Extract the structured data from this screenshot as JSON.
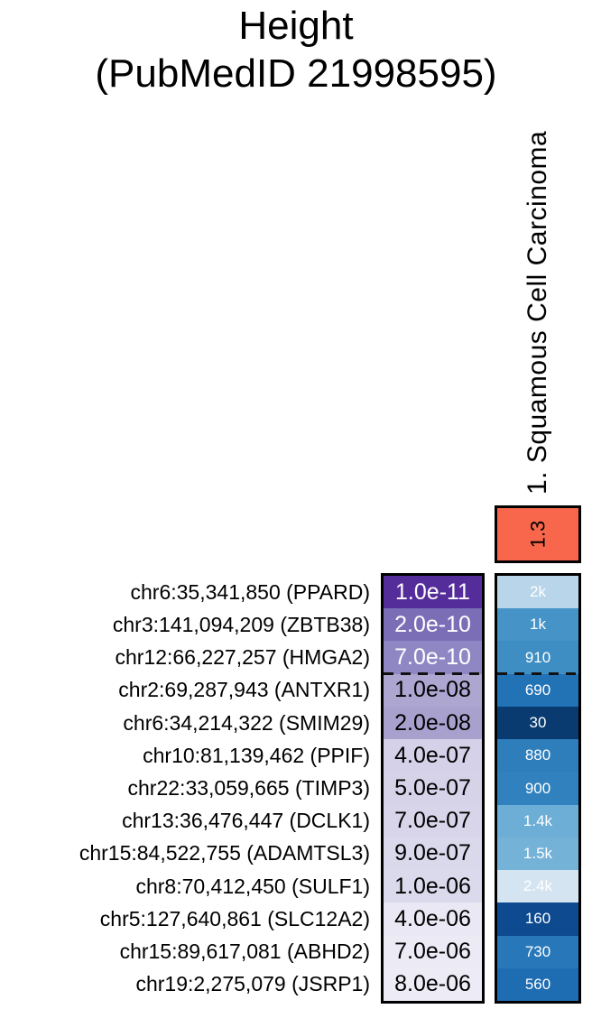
{
  "title": {
    "line1": "Height",
    "line2": "(PubMedID 21998595)"
  },
  "column_header": {
    "label": "1. Squamous Cell Carcinoma"
  },
  "summary_cell": {
    "value": "1.3",
    "color": "#F8674B",
    "border_color": "#000000"
  },
  "heatmap": {
    "threshold_after_row": 3,
    "rows": [
      {
        "label": "chr6:35,341,850 (PPARD)",
        "pvalue": "1.0e-11",
        "pvalue_bg": "#552D9B",
        "pvalue_fg": "#FFFFFF",
        "rank": "2k",
        "rank_bg": "#B9D5E9",
        "rank_fg": "#FFFFFF"
      },
      {
        "label": "chr3:141,094,209 (ZBTB38)",
        "pvalue": "2.0e-10",
        "pvalue_bg": "#7B6EB6",
        "pvalue_fg": "#FFFFFF",
        "rank": "1k",
        "rank_bg": "#4593C7",
        "rank_fg": "#FFFFFF"
      },
      {
        "label": "chr12:66,227,257 (HMGA2)",
        "pvalue": "7.0e-10",
        "pvalue_bg": "#8F87C3",
        "pvalue_fg": "#FFFFFF",
        "rank": "910",
        "rank_bg": "#3E8EC4",
        "rank_fg": "#FFFFFF"
      },
      {
        "label": "chr2:69,287,943 (ANTXR1)",
        "pvalue": "1.0e-08",
        "pvalue_bg": "#ACA6D1",
        "pvalue_fg": "#000000",
        "rank": "690",
        "rank_bg": "#2272B6",
        "rank_fg": "#FFFFFF"
      },
      {
        "label": "chr6:34,214,322 (SMIM29)",
        "pvalue": "2.0e-08",
        "pvalue_bg": "#A8A1CE",
        "pvalue_fg": "#000000",
        "rank": "30",
        "rank_bg": "#0A3B70",
        "rank_fg": "#FFFFFF"
      },
      {
        "label": "chr10:81,139,462 (PPIF)",
        "pvalue": "4.0e-07",
        "pvalue_bg": "#D4D1E8",
        "pvalue_fg": "#000000",
        "rank": "880",
        "rank_bg": "#2E7EBC",
        "rank_fg": "#FFFFFF"
      },
      {
        "label": "chr22:33,059,665 (TIMP3)",
        "pvalue": "5.0e-07",
        "pvalue_bg": "#D6D3E9",
        "pvalue_fg": "#000000",
        "rank": "900",
        "rank_bg": "#3181BE",
        "rank_fg": "#FFFFFF"
      },
      {
        "label": "chr13:36,476,447 (DCLK1)",
        "pvalue": "7.0e-07",
        "pvalue_bg": "#D8D5EA",
        "pvalue_fg": "#000000",
        "rank": "1.4k",
        "rank_bg": "#6CAED5",
        "rank_fg": "#FFFFFF"
      },
      {
        "label": "chr15:84,522,755 (ADAMTSL3)",
        "pvalue": "9.0e-07",
        "pvalue_bg": "#DAD8EB",
        "pvalue_fg": "#000000",
        "rank": "1.5k",
        "rank_bg": "#75B2D8",
        "rank_fg": "#FFFFFF"
      },
      {
        "label": "chr8:70,412,450 (SULF1)",
        "pvalue": "1.0e-06",
        "pvalue_bg": "#DBD9EC",
        "pvalue_fg": "#000000",
        "rank": "2.4k",
        "rank_bg": "#D5E4F1",
        "rank_fg": "#FFFFFF"
      },
      {
        "label": "chr5:127,640,861 (SLC12A2)",
        "pvalue": "4.0e-06",
        "pvalue_bg": "#EAE8F4",
        "pvalue_fg": "#000000",
        "rank": "160",
        "rank_bg": "#0D4A90",
        "rank_fg": "#FFFFFF"
      },
      {
        "label": "chr15:89,617,081 (ABHD2)",
        "pvalue": "7.0e-06",
        "pvalue_bg": "#ECEBF5",
        "pvalue_fg": "#000000",
        "rank": "730",
        "rank_bg": "#2878B9",
        "rank_fg": "#FFFFFF"
      },
      {
        "label": "chr19:2,275,079 (JSRP1)",
        "pvalue": "8.0e-06",
        "pvalue_bg": "#EDECF6",
        "pvalue_fg": "#000000",
        "rank": "560",
        "rank_bg": "#1E6CB1",
        "rank_fg": "#FFFFFF"
      }
    ]
  },
  "chart_data": {
    "type": "heatmap",
    "title": "Height (PubMedID 21998595)",
    "column": "1. Squamous Cell Carcinoma",
    "column_enrichment_score": 1.3,
    "legend_position": "none",
    "dashed_threshold_between_rows": [
      3,
      4
    ],
    "rows": [
      {
        "locus": "chr6:35,341,850",
        "gene": "PPARD",
        "pvalue": 1e-11,
        "rank": "2k"
      },
      {
        "locus": "chr3:141,094,209",
        "gene": "ZBTB38",
        "pvalue": 2e-10,
        "rank": "1k"
      },
      {
        "locus": "chr12:66,227,257",
        "gene": "HMGA2",
        "pvalue": 7e-10,
        "rank": "910"
      },
      {
        "locus": "chr2:69,287,943",
        "gene": "ANTXR1",
        "pvalue": 1e-08,
        "rank": "690"
      },
      {
        "locus": "chr6:34,214,322",
        "gene": "SMIM29",
        "pvalue": 2e-08,
        "rank": "30"
      },
      {
        "locus": "chr10:81,139,462",
        "gene": "PPIF",
        "pvalue": 4e-07,
        "rank": "880"
      },
      {
        "locus": "chr22:33,059,665",
        "gene": "TIMP3",
        "pvalue": 5e-07,
        "rank": "900"
      },
      {
        "locus": "chr13:36,476,447",
        "gene": "DCLK1",
        "pvalue": 7e-07,
        "rank": "1.4k"
      },
      {
        "locus": "chr15:84,522,755",
        "gene": "ADAMTSL3",
        "pvalue": 9e-07,
        "rank": "1.5k"
      },
      {
        "locus": "chr8:70,412,450",
        "gene": "SULF1",
        "pvalue": 1e-06,
        "rank": "2.4k"
      },
      {
        "locus": "chr5:127,640,861",
        "gene": "SLC12A2",
        "pvalue": 4e-06,
        "rank": "160"
      },
      {
        "locus": "chr15:89,617,081",
        "gene": "ABHD2",
        "pvalue": 7e-06,
        "rank": "730"
      },
      {
        "locus": "chr19:2,275,079",
        "gene": "JSRP1",
        "pvalue": 8e-06,
        "rank": "560"
      }
    ]
  }
}
